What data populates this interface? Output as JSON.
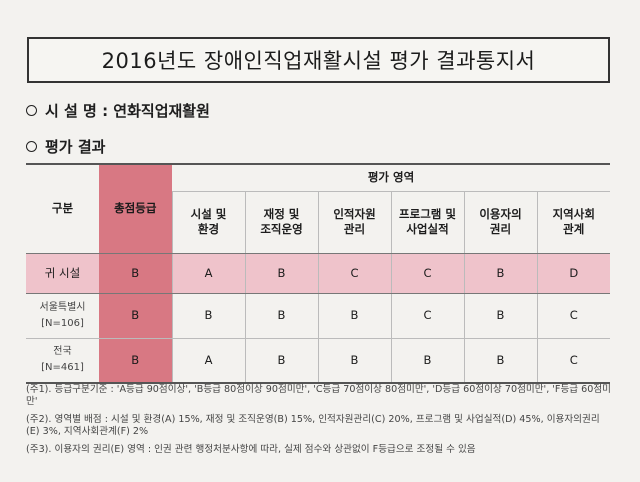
{
  "title": "2016년도 장애인직업재활시설 평가 결과통지서",
  "facility_label": "시 설 명 : 연화직업재활원",
  "result_label": "평가 결과",
  "table": {
    "col_category": "구분",
    "col_total": "총점등급",
    "col_area_group": "평가 영역",
    "areas": [
      "시설 및\n환경",
      "재정 및\n조직운영",
      "인적자원\n관리",
      "프로그램 및\n사업실적",
      "이용자의\n권리",
      "지역사회\n관계"
    ],
    "rows": [
      {
        "label": "귀 시설",
        "sub": "",
        "total": "B",
        "grades": [
          "A",
          "B",
          "C",
          "C",
          "B",
          "D"
        ]
      },
      {
        "label": "서울특별시",
        "sub": "[N=106]",
        "total": "B",
        "grades": [
          "B",
          "B",
          "B",
          "C",
          "B",
          "C"
        ]
      },
      {
        "label": "전국",
        "sub": "[N=461]",
        "total": "B",
        "grades": [
          "A",
          "B",
          "B",
          "B",
          "B",
          "C"
        ]
      }
    ]
  },
  "notes": [
    "(주1). 등급구분기준 : 'A등급 90점이상', 'B등급 80점이상 90점미만', 'C등급 70점이상 80점미만', 'D등급 60점이상 70점미만', 'F등급 60점미만'",
    "(주2). 영역별 배점 : 시설 및 환경(A) 15%, 재정 및 조직운영(B) 15%, 인적자원관리(C) 20%, 프로그램 및 사업실적(D) 45%, 이용자의권리(E) 3%, 지역사회관계(F) 2%",
    "(주3). 이용자의 권리(E) 영역 : 인권 관련 행정처분사항에 따라, 실제 점수와 상관없이 F등급으로 조정될 수 있음"
  ],
  "colors": {
    "total_column": "#d87883",
    "our_row": "#efc3cb"
  }
}
